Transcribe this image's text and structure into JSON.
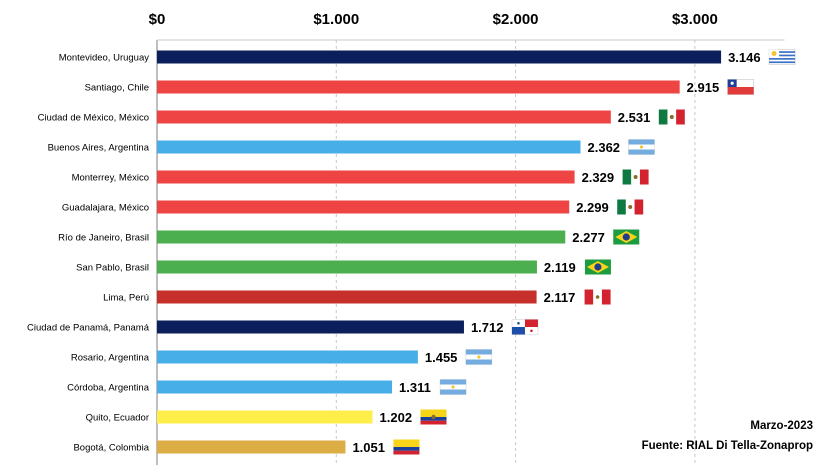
{
  "chart_data": {
    "type": "bar",
    "orientation": "horizontal",
    "categories": [
      "Montevideo, Uruguay",
      "Santiago, Chile",
      "Ciudad de México, México",
      "Buenos Aires, Argentina",
      "Monterrey, México",
      "Guadalajara, México",
      "Río de Janeiro, Brasil",
      "San Pablo, Brasil",
      "Lima, Perú",
      "Ciudad de Panamá, Panamá",
      "Rosario, Argentina",
      "Córdoba, Argentina",
      "Quito, Ecuador",
      "Bogotá, Colombia"
    ],
    "values": [
      3146,
      2915,
      2531,
      2362,
      2329,
      2299,
      2277,
      2119,
      2117,
      1712,
      1455,
      1311,
      1202,
      1051
    ],
    "value_labels": [
      "3.146",
      "2.915",
      "2.531",
      "2.362",
      "2.329",
      "2.299",
      "2.277",
      "2.119",
      "2.117",
      "1.712",
      "1.455",
      "1.311",
      "1.202",
      "1.051"
    ],
    "bar_colors": [
      "#0a1f5c",
      "#ee4444",
      "#ee4444",
      "#47aee8",
      "#ee4444",
      "#ee4444",
      "#4bae4f",
      "#4bae4f",
      "#c62f2a",
      "#0a1f5c",
      "#47aee8",
      "#47aee8",
      "#fdee4a",
      "#ddad45"
    ],
    "flags": [
      "uruguay-flag",
      "chile-flag",
      "mexico-flag",
      "argentina-flag",
      "mexico-flag",
      "mexico-flag",
      "brazil-flag",
      "brazil-flag",
      "peru-flag",
      "panama-flag",
      "argentina-flag",
      "argentina-flag",
      "ecuador-flag",
      "colombia-flag"
    ],
    "xlim": [
      0,
      3500
    ],
    "xticks": [
      0,
      1000,
      2000,
      3000
    ],
    "xtick_labels": [
      "$0",
      "$1.000",
      "$2.000",
      "$3.000"
    ],
    "xaxis_position": "top",
    "grid": "vertical dashed",
    "title": "",
    "xlabel": "",
    "ylabel": ""
  },
  "notes": {
    "date": "Marzo-2023",
    "source": "Fuente: RIAL Di Tella-Zonaprop"
  }
}
